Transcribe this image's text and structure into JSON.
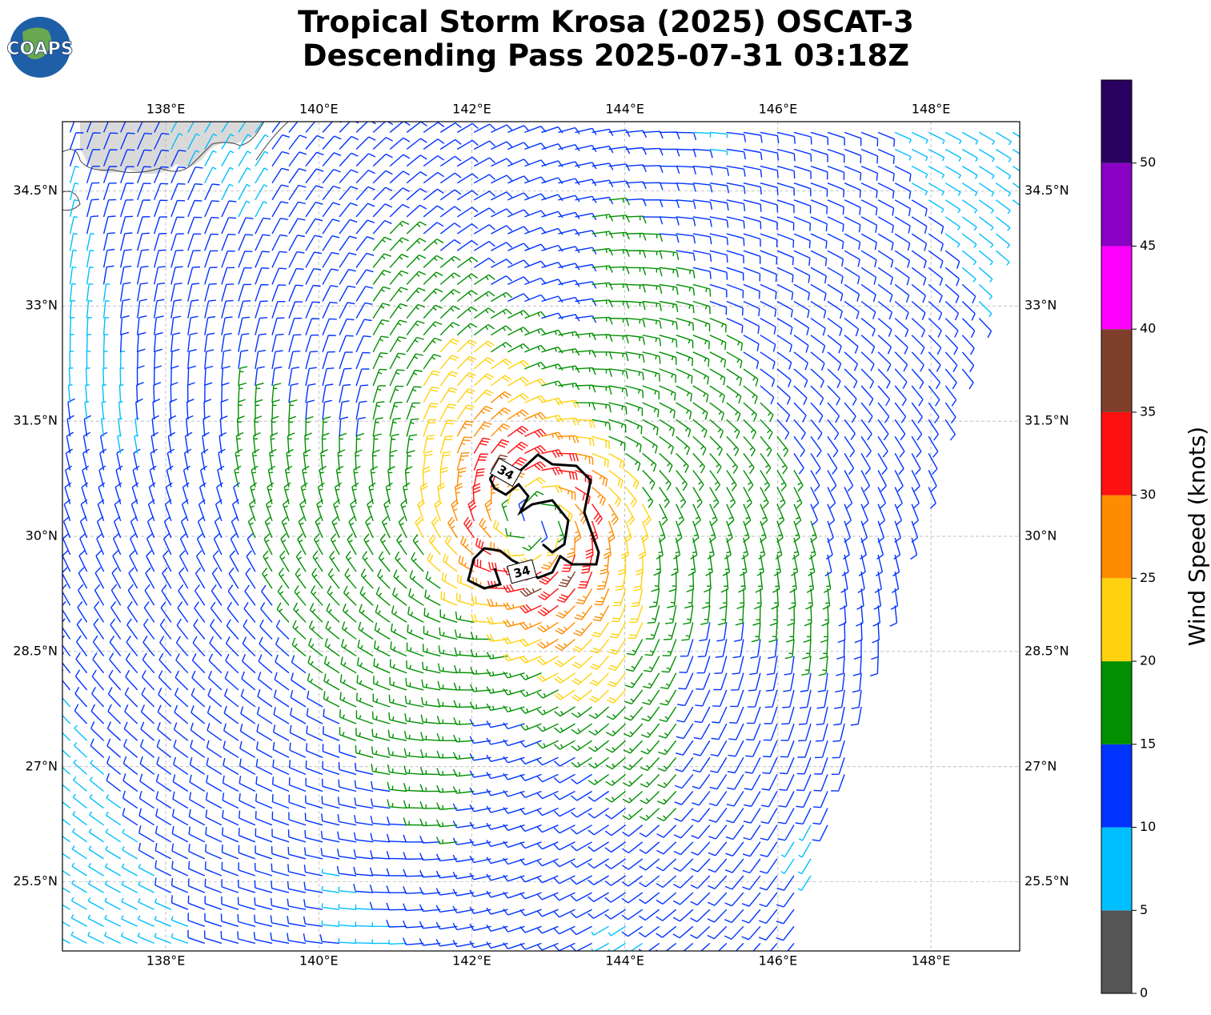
{
  "logo": "COAPS",
  "title": [
    "Tropical Storm Krosa (2025) OSCAT-3",
    "Descending Pass 2025-07-31 03:18Z"
  ],
  "map": {
    "xlim": [
      136.65,
      149.16
    ],
    "ylim": [
      24.6,
      35.4
    ],
    "xticks": [
      {
        "value": 138,
        "label": "138°E"
      },
      {
        "value": 140,
        "label": "140°E"
      },
      {
        "value": 142,
        "label": "142°E"
      },
      {
        "value": 144,
        "label": "144°E"
      },
      {
        "value": 146,
        "label": "146°E"
      },
      {
        "value": 148,
        "label": "148°E"
      }
    ],
    "yticks": [
      {
        "value": 25.5,
        "label": "25.5°N"
      },
      {
        "value": 27,
        "label": "27°N"
      },
      {
        "value": 28.5,
        "label": "28.5°N"
      },
      {
        "value": 30,
        "label": "30°N"
      },
      {
        "value": 31.5,
        "label": "31.5°N"
      },
      {
        "value": 33,
        "label": "33°N"
      },
      {
        "value": 34.5,
        "label": "34.5°N"
      }
    ],
    "grid": true,
    "contour_labels": [
      "34",
      "34"
    ]
  },
  "colorbar": {
    "label": "Wind Speed (knots)",
    "bounds": [
      0,
      5,
      10,
      15,
      20,
      25,
      30,
      35,
      40,
      45,
      50,
      55
    ],
    "colors": [
      "#555555",
      "#00bfff",
      "#0033ff",
      "#009000",
      "#ffd20f",
      "#ff8c00",
      "#ff1010",
      "#7f3f2a",
      "#ff00ff",
      "#8a00c4",
      "#2a0060"
    ],
    "ticks": [
      0,
      5,
      10,
      15,
      20,
      25,
      30,
      35,
      40,
      45,
      50
    ]
  }
}
